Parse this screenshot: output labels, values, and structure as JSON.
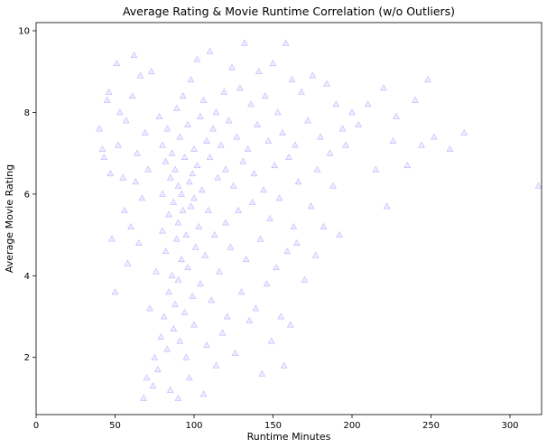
{
  "chart_data": {
    "type": "scatter",
    "title": "Average Rating & Movie Runtime Correlation (w/o Outliers)",
    "xlabel": "Runtime Minutes",
    "ylabel": "Average Movie Rating",
    "xlim": [
      0,
      320
    ],
    "ylim": [
      0.6,
      10.2
    ],
    "xticks": [
      0,
      50,
      100,
      150,
      200,
      250,
      300
    ],
    "yticks": [
      2,
      4,
      6,
      8,
      10
    ],
    "marker": "triangle",
    "color": "#0000ff",
    "grid": false,
    "legend": false,
    "points": [
      [
        40,
        7.6
      ],
      [
        42,
        7.1
      ],
      [
        43,
        6.9
      ],
      [
        45,
        8.3
      ],
      [
        46,
        8.5
      ],
      [
        47,
        6.5
      ],
      [
        48,
        4.9
      ],
      [
        50,
        3.6
      ],
      [
        51,
        9.2
      ],
      [
        52,
        7.2
      ],
      [
        53,
        8.0
      ],
      [
        55,
        6.4
      ],
      [
        56,
        5.6
      ],
      [
        57,
        7.8
      ],
      [
        58,
        4.3
      ],
      [
        60,
        5.2
      ],
      [
        61,
        8.4
      ],
      [
        62,
        9.4
      ],
      [
        63,
        6.3
      ],
      [
        64,
        7.0
      ],
      [
        65,
        4.8
      ],
      [
        66,
        8.9
      ],
      [
        67,
        5.9
      ],
      [
        68,
        1.0
      ],
      [
        69,
        7.5
      ],
      [
        70,
        1.5
      ],
      [
        71,
        6.6
      ],
      [
        72,
        3.2
      ],
      [
        73,
        9.0
      ],
      [
        74,
        1.3
      ],
      [
        75,
        2.0
      ],
      [
        76,
        4.1
      ],
      [
        77,
        1.7
      ],
      [
        78,
        7.9
      ],
      [
        79,
        2.5
      ],
      [
        80,
        6.0
      ],
      [
        80,
        7.2
      ],
      [
        80,
        5.1
      ],
      [
        81,
        3.0
      ],
      [
        82,
        6.8
      ],
      [
        82,
        4.6
      ],
      [
        83,
        2.2
      ],
      [
        83,
        7.6
      ],
      [
        84,
        5.5
      ],
      [
        84,
        3.6
      ],
      [
        85,
        6.4
      ],
      [
        85,
        1.2
      ],
      [
        86,
        4.0
      ],
      [
        86,
        7.0
      ],
      [
        87,
        5.8
      ],
      [
        87,
        2.7
      ],
      [
        88,
        6.6
      ],
      [
        88,
        3.3
      ],
      [
        89,
        4.9
      ],
      [
        89,
        8.1
      ],
      [
        90,
        6.2
      ],
      [
        90,
        3.9
      ],
      [
        90,
        5.3
      ],
      [
        90,
        1.0
      ],
      [
        91,
        7.4
      ],
      [
        91,
        2.4
      ],
      [
        92,
        6.0
      ],
      [
        92,
        4.4
      ],
      [
        93,
        5.6
      ],
      [
        93,
        8.4
      ],
      [
        94,
        3.1
      ],
      [
        94,
        6.9
      ],
      [
        95,
        5.0
      ],
      [
        95,
        2.0
      ],
      [
        96,
        7.7
      ],
      [
        96,
        4.2
      ],
      [
        97,
        6.3
      ],
      [
        97,
        1.5
      ],
      [
        98,
        5.7
      ],
      [
        98,
        8.8
      ],
      [
        99,
        3.5
      ],
      [
        99,
        6.5
      ],
      [
        100,
        5.9
      ],
      [
        100,
        7.1
      ],
      [
        100,
        2.8
      ],
      [
        101,
        4.7
      ],
      [
        102,
        6.7
      ],
      [
        102,
        9.3
      ],
      [
        103,
        5.2
      ],
      [
        104,
        7.9
      ],
      [
        104,
        3.8
      ],
      [
        105,
        6.1
      ],
      [
        106,
        8.3
      ],
      [
        106,
        1.1
      ],
      [
        107,
        4.5
      ],
      [
        108,
        7.3
      ],
      [
        108,
        2.3
      ],
      [
        109,
        5.6
      ],
      [
        110,
        6.9
      ],
      [
        110,
        9.5
      ],
      [
        111,
        3.4
      ],
      [
        112,
        7.6
      ],
      [
        113,
        5.0
      ],
      [
        114,
        8.0
      ],
      [
        114,
        1.8
      ],
      [
        115,
        6.4
      ],
      [
        116,
        4.1
      ],
      [
        117,
        7.2
      ],
      [
        118,
        2.6
      ],
      [
        119,
        8.5
      ],
      [
        120,
        6.6
      ],
      [
        120,
        5.3
      ],
      [
        121,
        3.0
      ],
      [
        122,
        7.8
      ],
      [
        123,
        4.7
      ],
      [
        124,
        9.1
      ],
      [
        125,
        6.2
      ],
      [
        126,
        2.1
      ],
      [
        127,
        7.4
      ],
      [
        128,
        5.6
      ],
      [
        129,
        8.6
      ],
      [
        130,
        3.6
      ],
      [
        131,
        6.8
      ],
      [
        132,
        9.7
      ],
      [
        133,
        4.4
      ],
      [
        134,
        7.1
      ],
      [
        135,
        2.9
      ],
      [
        136,
        8.2
      ],
      [
        137,
        5.8
      ],
      [
        138,
        6.5
      ],
      [
        139,
        3.2
      ],
      [
        140,
        7.7
      ],
      [
        141,
        9.0
      ],
      [
        142,
        4.9
      ],
      [
        143,
        1.6
      ],
      [
        144,
        6.1
      ],
      [
        145,
        8.4
      ],
      [
        146,
        3.8
      ],
      [
        147,
        7.3
      ],
      [
        148,
        5.4
      ],
      [
        149,
        2.4
      ],
      [
        150,
        9.2
      ],
      [
        151,
        6.7
      ],
      [
        152,
        4.2
      ],
      [
        153,
        8.0
      ],
      [
        154,
        5.9
      ],
      [
        155,
        3.0
      ],
      [
        156,
        7.5
      ],
      [
        157,
        1.8
      ],
      [
        158,
        9.7
      ],
      [
        159,
        4.6
      ],
      [
        160,
        6.9
      ],
      [
        161,
        2.8
      ],
      [
        162,
        8.8
      ],
      [
        163,
        5.2
      ],
      [
        164,
        7.2
      ],
      [
        165,
        4.8
      ],
      [
        166,
        6.3
      ],
      [
        168,
        8.5
      ],
      [
        170,
        3.9
      ],
      [
        172,
        7.8
      ],
      [
        174,
        5.7
      ],
      [
        175,
        8.9
      ],
      [
        177,
        4.5
      ],
      [
        178,
        6.6
      ],
      [
        180,
        7.4
      ],
      [
        182,
        5.2
      ],
      [
        184,
        8.7
      ],
      [
        186,
        7.0
      ],
      [
        188,
        6.2
      ],
      [
        190,
        8.2
      ],
      [
        192,
        5.0
      ],
      [
        194,
        7.6
      ],
      [
        196,
        7.2
      ],
      [
        200,
        8.0
      ],
      [
        204,
        7.7
      ],
      [
        210,
        8.2
      ],
      [
        215,
        6.6
      ],
      [
        220,
        8.6
      ],
      [
        222,
        5.7
      ],
      [
        226,
        7.3
      ],
      [
        228,
        7.9
      ],
      [
        235,
        6.7
      ],
      [
        240,
        8.3
      ],
      [
        244,
        7.2
      ],
      [
        248,
        8.8
      ],
      [
        252,
        7.4
      ],
      [
        262,
        7.1
      ],
      [
        271,
        7.5
      ],
      [
        318,
        6.2
      ]
    ]
  }
}
